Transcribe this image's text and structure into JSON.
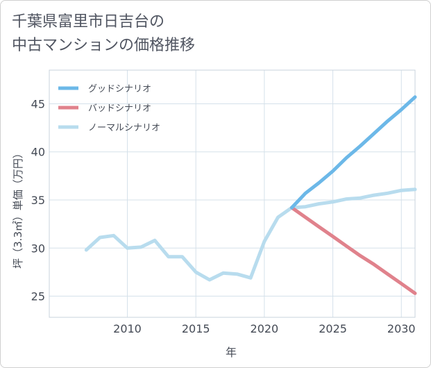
{
  "title_line1": "千葉県富里市日吉台の",
  "title_line2": "中古マンションの価格推移",
  "chart_data": {
    "type": "line",
    "title": "千葉県富里市日吉台の中古マンションの価格推移",
    "xlabel": "年",
    "ylabel": "坪（3.3㎡）単価（万円）",
    "xlim": [
      2004.3,
      2031.0
    ],
    "ylim": [
      22.8,
      48.5
    ],
    "xticks": [
      2010,
      2015,
      2020,
      2025,
      2030
    ],
    "yticks": [
      25,
      30,
      35,
      40,
      45
    ],
    "grid": true,
    "legend_position": "top-left",
    "series": [
      {
        "name": "グッドシナリオ",
        "color": "#6cb8e8",
        "x": [
          2022,
          2023,
          2024,
          2025,
          2026,
          2027,
          2028,
          2029,
          2030,
          2031
        ],
        "y": [
          34.2,
          35.7,
          36.8,
          38.0,
          39.4,
          40.6,
          41.9,
          43.2,
          44.4,
          45.7
        ]
      },
      {
        "name": "バッドシナリオ",
        "color": "#e0828c",
        "x": [
          2022,
          2023,
          2024,
          2025,
          2026,
          2027,
          2028,
          2029,
          2030,
          2031
        ],
        "y": [
          34.2,
          33.2,
          32.2,
          31.2,
          30.2,
          29.2,
          28.3,
          27.3,
          26.3,
          25.3
        ]
      },
      {
        "name": "ノーマルシナリオ",
        "color": "#b8dcee",
        "x": [
          2007,
          2008,
          2009,
          2010,
          2011,
          2012,
          2013,
          2014,
          2015,
          2016,
          2017,
          2018,
          2019,
          2020,
          2021,
          2022,
          2023,
          2024,
          2025,
          2026,
          2027,
          2028,
          2029,
          2030,
          2031
        ],
        "y": [
          29.8,
          31.1,
          31.3,
          30.0,
          30.1,
          30.8,
          29.1,
          29.1,
          27.5,
          26.7,
          27.4,
          27.3,
          26.9,
          30.7,
          33.2,
          34.2,
          34.3,
          34.6,
          34.8,
          35.1,
          35.2,
          35.5,
          35.7,
          36.0,
          36.1
        ]
      }
    ]
  }
}
